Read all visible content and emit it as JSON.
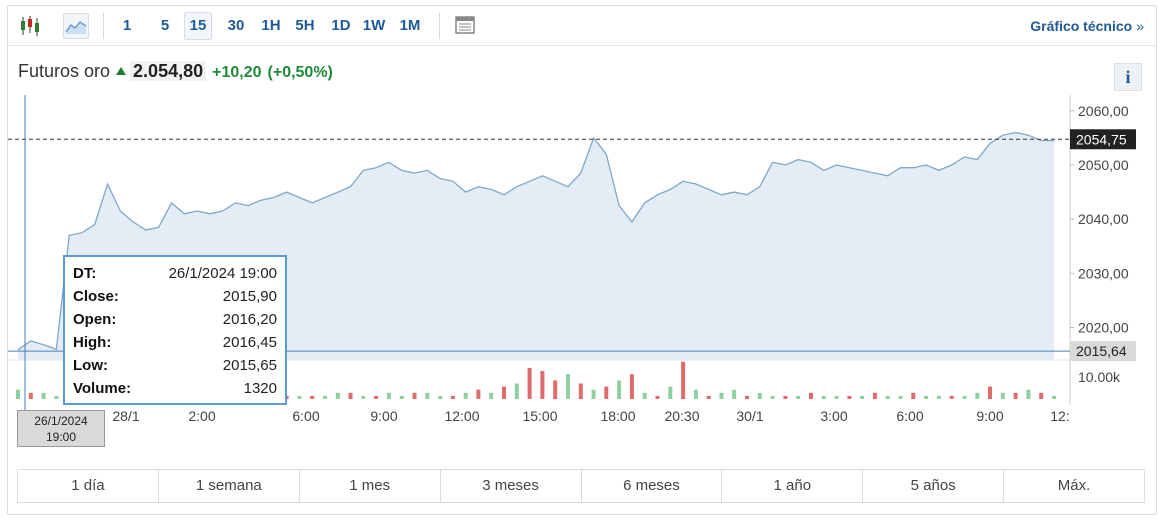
{
  "toolbar": {
    "chart_types": [
      "candlestick-icon",
      "area-chart-icon"
    ],
    "timeframes": [
      "1",
      "5",
      "15",
      "30",
      "1H",
      "5H",
      "1D",
      "1W",
      "1M"
    ],
    "selected_timeframe": "15",
    "table_icon": "table-icon",
    "technical_link": "Gráfico técnico",
    "technical_chevron": "»"
  },
  "quote": {
    "name": "Futuros oro",
    "price": "2.054,80",
    "change": "+10,20",
    "change_pct": "(+0,50%)",
    "color_up": "#1e8a3a"
  },
  "info_label": "i",
  "chart_data": {
    "type": "area",
    "y_ticks": [
      "2060,00",
      "2050,00",
      "2040,00",
      "2030,00",
      "2020,00"
    ],
    "ylim": [
      2014,
      2062
    ],
    "volume_tick": "10.00k",
    "x_ticks": [
      "28/1",
      "2:00",
      "6:00",
      "9:00",
      "12:00",
      "15:00",
      "18:00",
      "20:30",
      "30/1",
      "3:00",
      "6:00",
      "9:00",
      "12:"
    ],
    "current_label": "2054,75",
    "current_value": 2054.75,
    "crosshair_label": "2015,64",
    "crosshair_value": 2015.64,
    "values": [
      2015.9,
      2017.5,
      2016.8,
      2016.0,
      2037.0,
      2037.5,
      2039.0,
      2046.5,
      2041.5,
      2039.5,
      2038.0,
      2038.5,
      2043.0,
      2041.0,
      2041.5,
      2041.0,
      2041.5,
      2043.0,
      2042.5,
      2043.5,
      2044.0,
      2045.0,
      2044.0,
      2043.0,
      2044.0,
      2045.0,
      2046.0,
      2049.0,
      2049.5,
      2050.5,
      2049.0,
      2048.5,
      2049.0,
      2047.5,
      2047.0,
      2045.0,
      2046.0,
      2045.5,
      2044.5,
      2046.0,
      2047.0,
      2048.0,
      2047.0,
      2046.0,
      2048.5,
      2055.0,
      2052.0,
      2042.5,
      2039.5,
      2043.0,
      2044.5,
      2045.5,
      2047.0,
      2046.5,
      2045.5,
      2044.5,
      2045.0,
      2044.5,
      2046.0,
      2050.5,
      2050.0,
      2051.0,
      2050.5,
      2049.0,
      2050.0,
      2049.5,
      2049.0,
      2048.5,
      2048.0,
      2049.5,
      2049.5,
      2050.0,
      2049.0,
      2050.0,
      2051.5,
      2051.0,
      2054.0,
      2055.5,
      2056.0,
      2055.5,
      2054.5,
      2054.5
    ],
    "volumes": [
      3,
      2,
      2,
      1,
      1,
      2,
      1,
      1,
      1,
      2,
      1,
      1,
      1,
      2,
      1,
      1,
      1,
      2,
      1,
      1,
      2,
      1,
      1,
      1,
      1,
      2,
      2,
      1,
      1,
      2,
      1,
      2,
      2,
      1,
      1,
      2,
      3,
      2,
      4,
      5,
      10,
      9,
      6,
      8,
      5,
      3,
      4,
      6,
      8,
      2,
      1,
      4,
      12,
      3,
      1,
      2,
      3,
      1,
      2,
      1,
      1,
      1,
      2,
      1,
      1,
      1,
      1,
      2,
      1,
      1,
      2,
      1,
      1,
      1,
      1,
      2,
      4,
      2,
      2,
      3,
      2,
      1
    ],
    "volume_dir": [
      "up",
      "dn",
      "up",
      "up",
      "dn",
      "up",
      "up",
      "dn",
      "up",
      "up",
      "dn",
      "up",
      "up",
      "dn",
      "up",
      "dn",
      "up",
      "up",
      "dn",
      "up",
      "up",
      "dn",
      "up",
      "dn",
      "up",
      "up",
      "dn",
      "up",
      "dn",
      "up",
      "up",
      "dn",
      "up",
      "up",
      "dn",
      "up",
      "dn",
      "up",
      "dn",
      "up",
      "dn",
      "dn",
      "dn",
      "up",
      "dn",
      "up",
      "dn",
      "up",
      "dn",
      "up",
      "dn",
      "up",
      "dn",
      "up",
      "dn",
      "up",
      "up",
      "dn",
      "up",
      "up",
      "dn",
      "up",
      "dn",
      "up",
      "up",
      "dn",
      "up",
      "dn",
      "up",
      "up",
      "dn",
      "up",
      "up",
      "dn",
      "up",
      "up",
      "dn",
      "up",
      "dn",
      "up",
      "dn",
      "up"
    ],
    "line_color": "#7fa7c9",
    "fill_color": "#e4edf5",
    "vol_up_color": "#8fd19e",
    "vol_down_color": "#e06b6b"
  },
  "tooltip": {
    "rows": [
      {
        "key": "DT:",
        "value": "26/1/2024 19:00"
      },
      {
        "key": "Close:",
        "value": "2015,90"
      },
      {
        "key": "Open:",
        "value": "2016,20"
      },
      {
        "key": "High:",
        "value": "2016,45"
      },
      {
        "key": "Low:",
        "value": "2015,65"
      },
      {
        "key": "Volume:",
        "value": "1320"
      }
    ]
  },
  "date_badge": {
    "date": "26/1/2024",
    "time": "19:00"
  },
  "ranges": [
    "1 día",
    "1 semana",
    "1 mes",
    "3 meses",
    "6 meses",
    "1 año",
    "5 años",
    "Máx."
  ]
}
